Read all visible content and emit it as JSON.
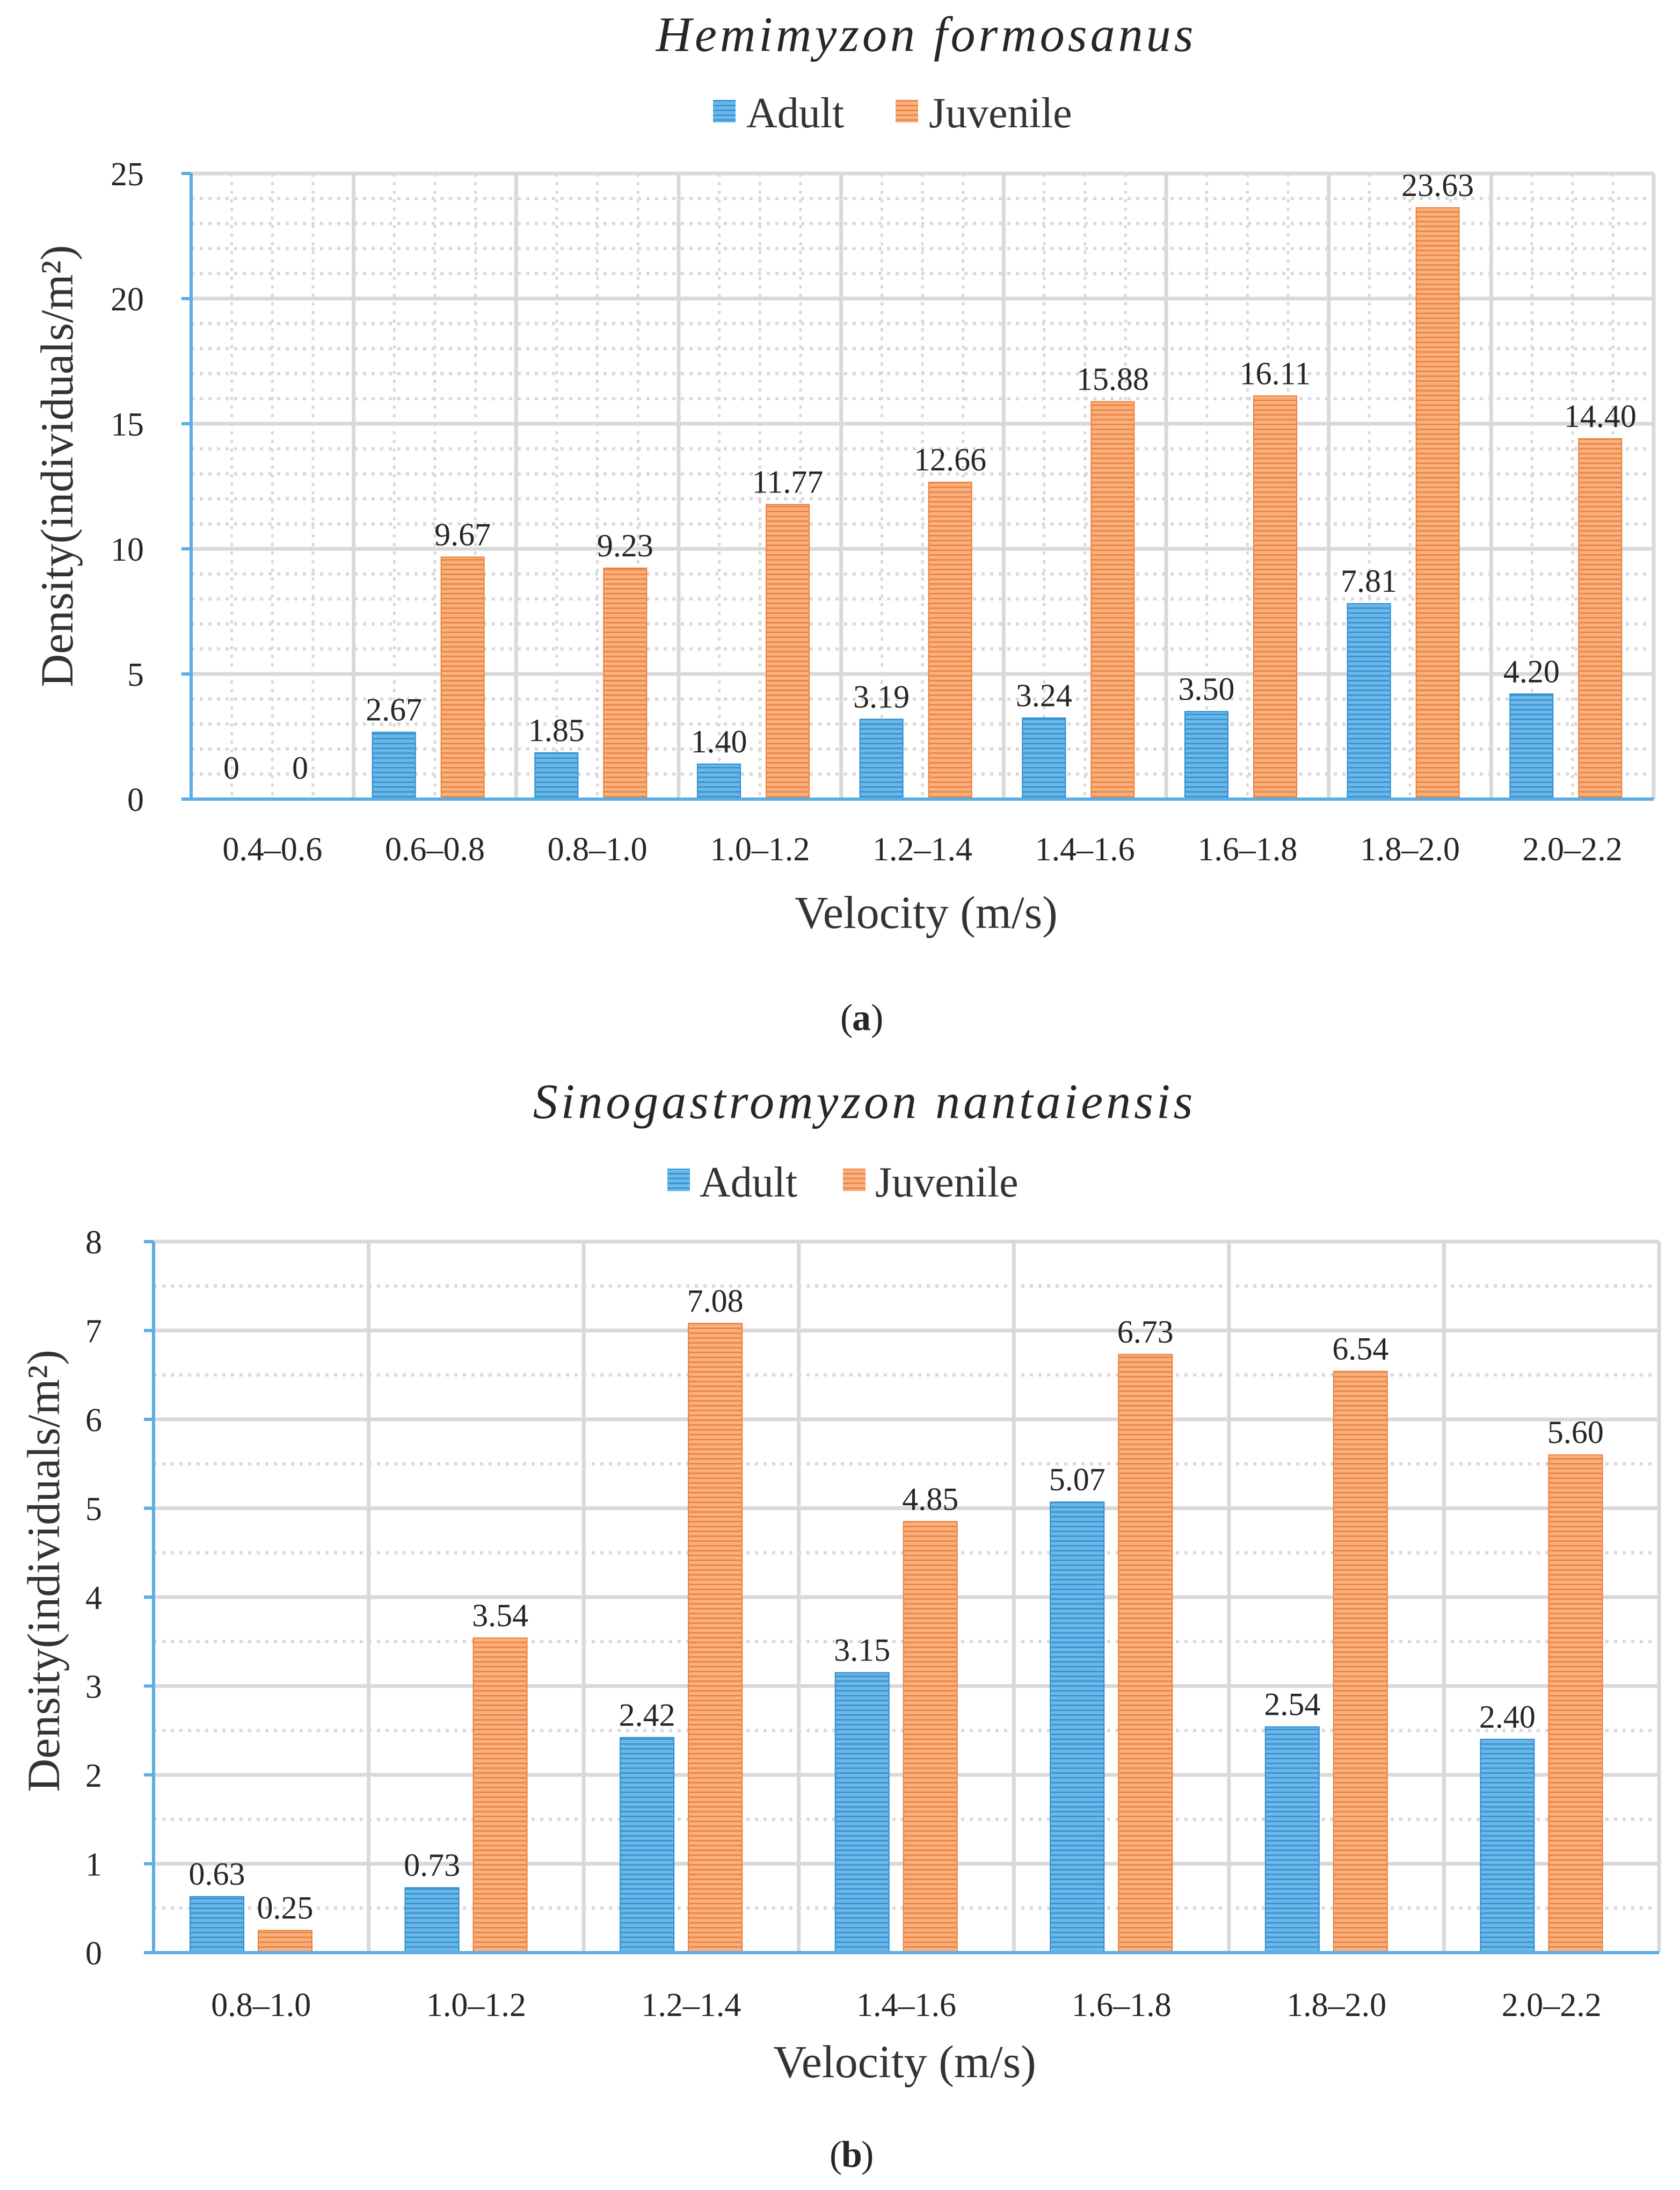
{
  "colors": {
    "adult": "#5aaee3",
    "adult_stripe": "#2e8ccf",
    "juvenile": "#f7a46d",
    "juvenile_stripe": "#ee7f3b",
    "grid_major": "#d9d9d9",
    "grid_minor": "#d9d9d9",
    "axis": "#5aaee3",
    "text": "#262626"
  },
  "chart_data": [
    {
      "type": "bar",
      "title": "Hemimyzon formosanus",
      "panel_label": "a",
      "xlabel": "Velocity (m/s)",
      "ylabel": "Density(individuals/m²)",
      "ylim": [
        0,
        25
      ],
      "yticks": [
        0,
        5,
        10,
        15,
        20,
        25
      ],
      "minor_step": 1,
      "legend": [
        "Adult",
        "Juvenile"
      ],
      "legend_position": "top-center",
      "categories": [
        "0.4–0.6",
        "0.6–0.8",
        "0.8–1.0",
        "1.0–1.2",
        "1.2–1.4",
        "1.4–1.6",
        "1.6–1.8",
        "1.8–2.0",
        "2.0–2.2"
      ],
      "series": [
        {
          "name": "Adult",
          "values": [
            0,
            2.67,
            1.85,
            1.4,
            3.19,
            3.24,
            3.5,
            7.81,
            4.2
          ],
          "labels": [
            "0",
            "2.67",
            "1.85",
            "1.40",
            "3.19",
            "3.24",
            "3.50",
            "7.81",
            "4.20"
          ]
        },
        {
          "name": "Juvenile",
          "values": [
            0,
            9.67,
            9.23,
            11.77,
            12.66,
            15.88,
            16.11,
            23.63,
            14.4
          ],
          "labels": [
            "0",
            "9.67",
            "9.23",
            "11.77",
            "12.66",
            "15.88",
            "16.11",
            "23.63",
            "14.40"
          ]
        }
      ]
    },
    {
      "type": "bar",
      "title": "Sinogastromyzon nantaiensis",
      "panel_label": "b",
      "xlabel": "Velocity (m/s)",
      "ylabel": "Density(individuals/m²)",
      "ylim": [
        0,
        8
      ],
      "yticks": [
        0,
        1,
        2,
        3,
        4,
        5,
        6,
        7,
        8
      ],
      "minor_step": 0.5,
      "legend": [
        "Adult",
        "Juvenile"
      ],
      "legend_position": "top-center",
      "categories": [
        "0.8–1.0",
        "1.0–1.2",
        "1.2–1.4",
        "1.4–1.6",
        "1.6–1.8",
        "1.8–2.0",
        "2.0–2.2"
      ],
      "series": [
        {
          "name": "Adult",
          "values": [
            0.63,
            0.73,
            2.42,
            3.15,
            5.07,
            2.54,
            2.4
          ],
          "labels": [
            "0.63",
            "0.73",
            "2.42",
            "3.15",
            "5.07",
            "2.54",
            "2.40"
          ]
        },
        {
          "name": "Juvenile",
          "values": [
            0.25,
            3.54,
            7.08,
            4.85,
            6.73,
            6.54,
            5.6
          ],
          "labels": [
            "0.25",
            "3.54",
            "7.08",
            "4.85",
            "6.73",
            "6.54",
            "5.60"
          ]
        }
      ]
    }
  ]
}
